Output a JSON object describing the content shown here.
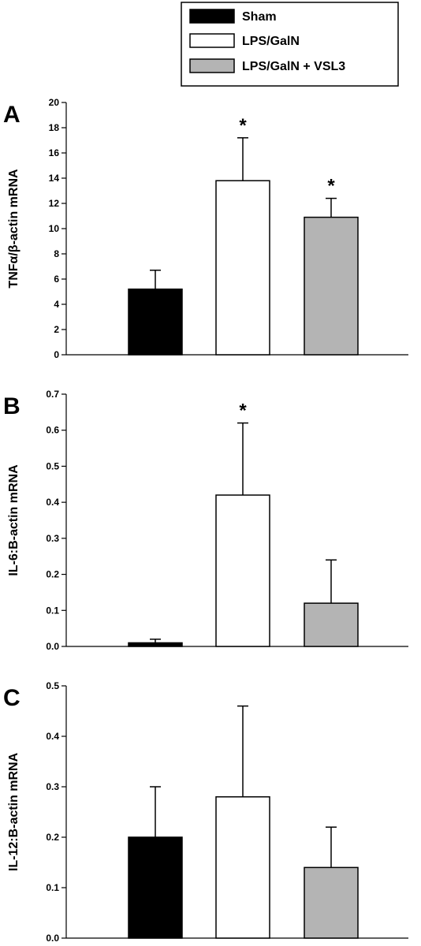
{
  "legend": [
    {
      "label": "Sham",
      "color": "#000000"
    },
    {
      "label": "LPS/GalN",
      "color": "#ffffff"
    },
    {
      "label": "LPS/GalN + VSL3",
      "color": "#b4b4b4"
    }
  ],
  "chart_data": [
    {
      "type": "bar",
      "panel": "A",
      "categories": [
        "Sham",
        "LPS/GalN",
        "LPS/GalN + VSL3"
      ],
      "values": [
        5.2,
        13.8,
        10.9
      ],
      "errors": [
        1.5,
        3.4,
        1.5
      ],
      "significance": [
        "",
        "*",
        "*"
      ],
      "ylabel": "TNFα/β-actin mRNA",
      "ylim": [
        0,
        20
      ],
      "yticks": [
        0,
        2,
        4,
        6,
        8,
        10,
        12,
        14,
        16,
        18,
        20
      ],
      "ytick_labels": [
        "0",
        "2",
        "4",
        "6",
        "8",
        "10",
        "12",
        "14",
        "16",
        "18",
        "20"
      ],
      "grid": false
    },
    {
      "type": "bar",
      "panel": "B",
      "categories": [
        "Sham",
        "LPS/GalN",
        "LPS/GalN + VSL3"
      ],
      "values": [
        0.01,
        0.42,
        0.12
      ],
      "errors": [
        0.01,
        0.2,
        0.12
      ],
      "significance": [
        "",
        "*",
        ""
      ],
      "ylabel": "IL-6:Β-actin mRNA",
      "ylim": [
        0,
        0.7
      ],
      "yticks": [
        0,
        0.1,
        0.2,
        0.3,
        0.4,
        0.5,
        0.6,
        0.7
      ],
      "ytick_labels": [
        "0.0",
        "0.1",
        "0.2",
        "0.3",
        "0.4",
        "0.5",
        "0.6",
        "0.7"
      ],
      "grid": false
    },
    {
      "type": "bar",
      "panel": "C",
      "categories": [
        "Sham",
        "LPS/GalN",
        "LPS/GalN + VSL3"
      ],
      "values": [
        0.2,
        0.28,
        0.14
      ],
      "errors": [
        0.1,
        0.18,
        0.08
      ],
      "significance": [
        "",
        "",
        ""
      ],
      "ylabel": "IL-12:Β-actin mRNA",
      "ylim": [
        0,
        0.5
      ],
      "yticks": [
        0,
        0.1,
        0.2,
        0.3,
        0.4,
        0.5
      ],
      "ytick_labels": [
        "0.0",
        "0.1",
        "0.2",
        "0.3",
        "0.4",
        "0.5"
      ],
      "grid": false
    }
  ]
}
